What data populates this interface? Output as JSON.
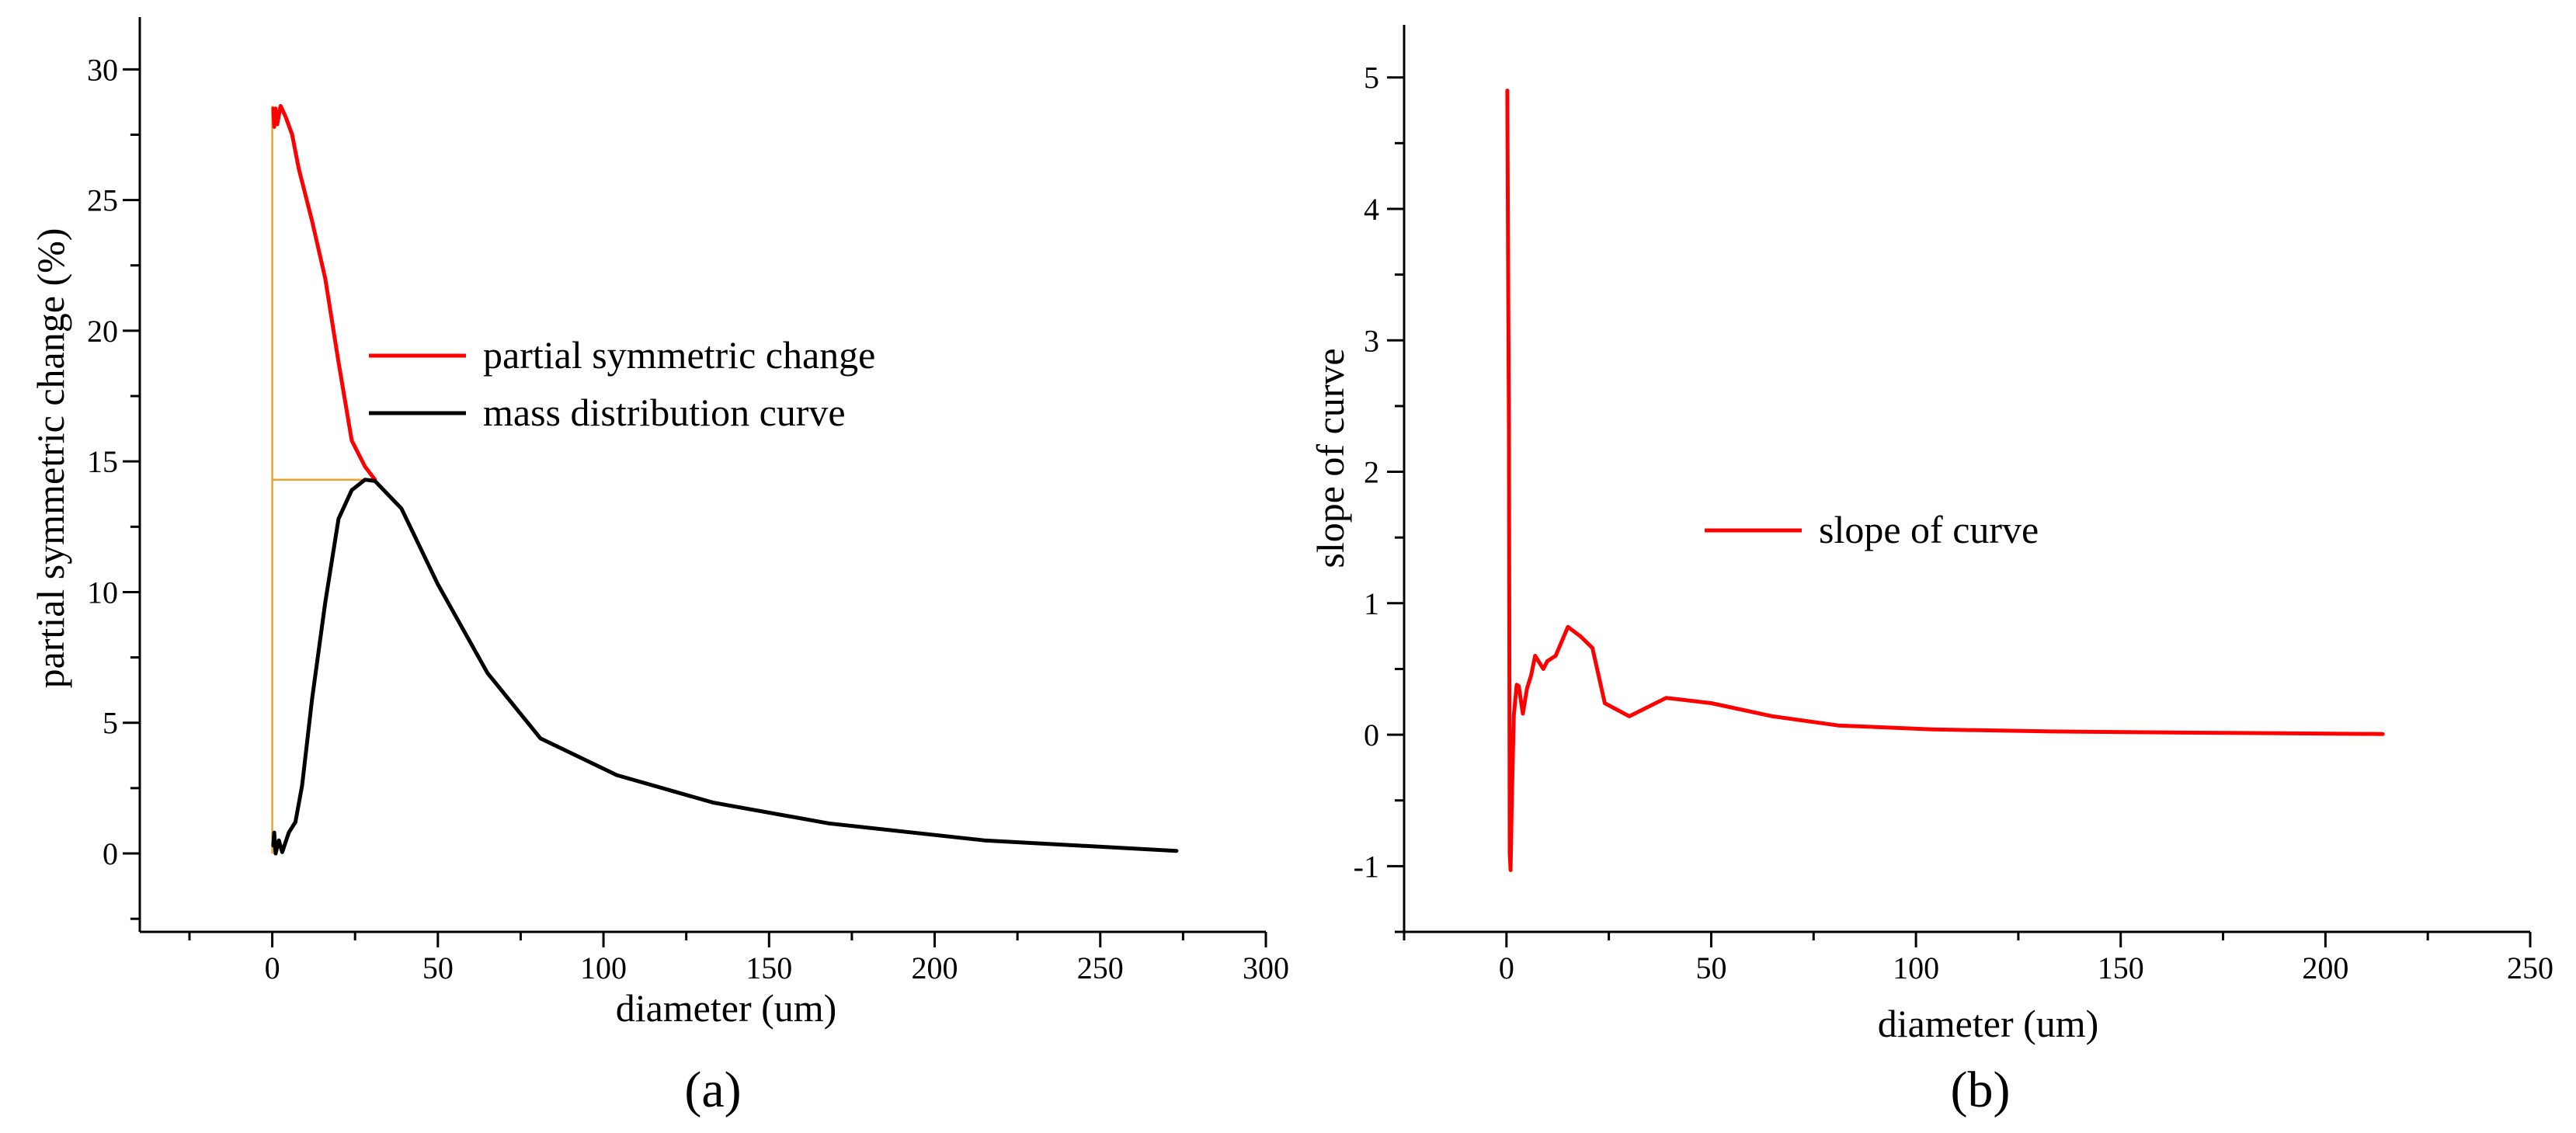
{
  "chart_data": [
    {
      "type": "line",
      "panel_label": "(a)",
      "xlabel": "diameter (um)",
      "ylabel": "partial symmetric change (%)",
      "xlim": [
        -40,
        300
      ],
      "ylim": [
        -3,
        32
      ],
      "xticks": [
        0,
        50,
        100,
        150,
        200,
        250,
        300
      ],
      "yticks": [
        0,
        5,
        10,
        15,
        20,
        25,
        30
      ],
      "legend_position": "center",
      "series": [
        {
          "name": "partial symmetric change",
          "color": "#ff0000",
          "x": [
            0.3,
            0.6,
            1.0,
            1.5,
            2.5,
            4,
            6,
            8,
            12,
            16,
            20,
            24,
            28,
            31
          ],
          "y": [
            28.5,
            27.8,
            28.5,
            27.9,
            28.6,
            28.2,
            27.5,
            26.2,
            24.2,
            22.0,
            18.8,
            15.8,
            14.8,
            14.3
          ]
        },
        {
          "name": "mass distribution curve",
          "color": "#000000",
          "x": [
            0.3,
            0.6,
            1.0,
            2,
            3,
            5,
            7,
            9,
            12,
            16,
            20,
            24,
            28,
            31,
            39,
            50,
            65,
            81,
            104,
            133,
            168,
            215,
            273
          ],
          "y": [
            0.3,
            0.8,
            0.0,
            0.5,
            0.05,
            0.8,
            1.2,
            2.6,
            5.9,
            9.6,
            12.8,
            13.9,
            14.3,
            14.25,
            13.2,
            10.3,
            6.9,
            4.4,
            3.0,
            1.95,
            1.15,
            0.5,
            0.1
          ]
        }
      ],
      "guide_lines": {
        "color": "#f0a030",
        "vertical": {
          "x": 0,
          "y_from": 0,
          "y_to": 28.6
        },
        "horizontal": {
          "y": 14.3,
          "x_from": 0,
          "x_to": 31
        }
      }
    },
    {
      "type": "line",
      "panel_label": "(b)",
      "xlabel": "diameter (um)",
      "ylabel": "slope of curve",
      "xlim": [
        -25,
        250
      ],
      "ylim": [
        -1.5,
        5.4
      ],
      "xticks": [
        0,
        50,
        100,
        150,
        200,
        250
      ],
      "yticks": [
        -1,
        0,
        1,
        2,
        3,
        4,
        5
      ],
      "legend_position": "center",
      "series": [
        {
          "name": "slope of curve",
          "color": "#ff0000",
          "x": [
            0.2,
            0.4,
            0.6,
            0.8,
            1.0,
            1.3,
            1.8,
            2.5,
            3,
            4,
            5,
            6,
            7,
            8,
            9,
            10,
            12,
            15,
            18,
            21,
            24,
            30,
            39,
            50,
            65,
            81,
            104,
            133,
            168,
            214
          ],
          "y": [
            4.9,
            3.6,
            2.3,
            -0.9,
            -1.03,
            -0.5,
            0.15,
            0.38,
            0.37,
            0.16,
            0.35,
            0.45,
            0.6,
            0.55,
            0.5,
            0.56,
            0.6,
            0.82,
            0.75,
            0.66,
            0.24,
            0.14,
            0.28,
            0.24,
            0.14,
            0.07,
            0.04,
            0.025,
            0.015,
            0.005
          ]
        }
      ]
    }
  ]
}
